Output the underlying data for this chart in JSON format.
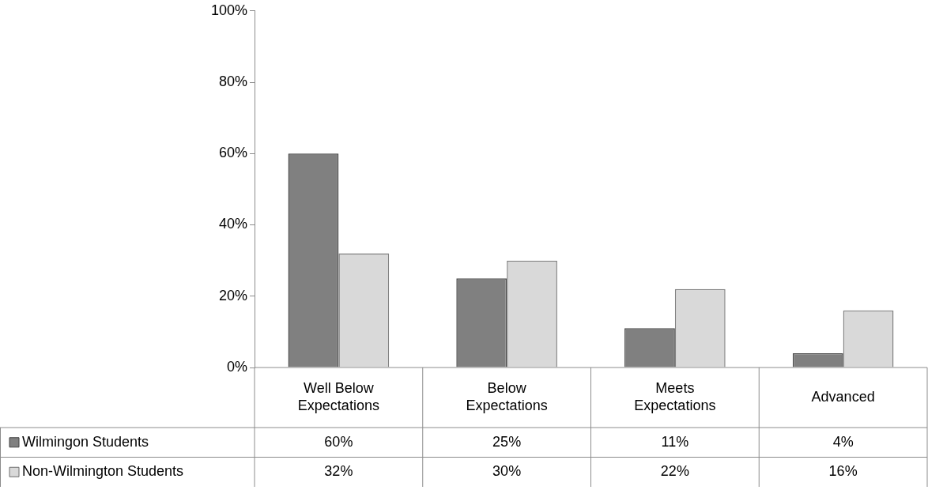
{
  "chart_data": {
    "type": "bar",
    "categories": [
      "Well Below Expectations",
      "Below Expectations",
      "Meets Expectations",
      "Advanced"
    ],
    "series": [
      {
        "name": "Wilmingon Students",
        "color": "#808080",
        "values": [
          60,
          25,
          11,
          4
        ],
        "value_labels": [
          "60%",
          "25%",
          "11%",
          "4%"
        ]
      },
      {
        "name": "Non-Wilmington Students",
        "color": "#d9d9d9",
        "values": [
          32,
          30,
          22,
          16
        ],
        "value_labels": [
          "32%",
          "30%",
          "22%",
          "16%"
        ]
      }
    ],
    "ylim": [
      0,
      100
    ],
    "yticks": [
      {
        "value": 0,
        "label": "0%"
      },
      {
        "value": 20,
        "label": "20%"
      },
      {
        "value": 40,
        "label": "40%"
      },
      {
        "value": 60,
        "label": "60%"
      },
      {
        "value": 80,
        "label": "80%"
      },
      {
        "value": 100,
        "label": "100%"
      }
    ],
    "legend": "bottom",
    "grid": false
  }
}
